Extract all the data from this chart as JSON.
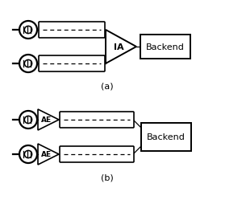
{
  "bg_color": "#ffffff",
  "label_a": "(a)",
  "label_b": "(b)",
  "backend_label": "Backend",
  "ia_label": "IA",
  "ae_label": "AE",
  "figsize": [
    3.05,
    2.55
  ],
  "dpi": 100
}
